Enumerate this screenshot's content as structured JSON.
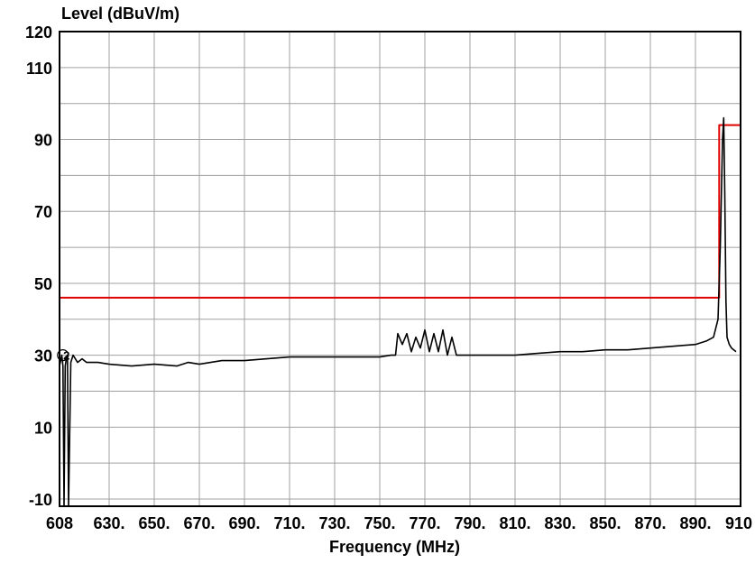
{
  "chart_data": {
    "type": "line",
    "title": "",
    "ylabel": "Level (dBuV/m)",
    "xlabel": "Frequency (MHz)",
    "xlim": [
      608,
      910
    ],
    "ylim": [
      -12,
      120
    ],
    "x_ticks": [
      608,
      630,
      650,
      670,
      690,
      710,
      730,
      750,
      770,
      790,
      810,
      830,
      850,
      870,
      890,
      910
    ],
    "x_tick_labels": [
      "608",
      "630.",
      "650.",
      "670.",
      "690.",
      "710.",
      "730.",
      "750.",
      "770.",
      "790.",
      "810.",
      "830.",
      "850.",
      "870.",
      "890.",
      "910"
    ],
    "y_ticks": [
      120,
      110,
      90,
      70,
      50,
      30,
      10,
      -10
    ],
    "y_tick_labels": [
      "120",
      "110",
      "90",
      "70",
      "50",
      "30",
      "10",
      "-10"
    ],
    "grid": true,
    "marker_label": "2",
    "colors": {
      "limit": "#e00000",
      "trace": "#000000",
      "grid": "#a0a0a0"
    },
    "series": [
      {
        "role": "limit",
        "x": [
          608,
          900.5,
          900.5,
          910
        ],
        "y": [
          46,
          46,
          94,
          94
        ]
      },
      {
        "role": "measurement",
        "x": [
          608,
          609,
          609.5,
          610,
          610.5,
          611,
          611.5,
          612,
          613,
          614,
          616,
          618,
          620,
          625,
          630,
          640,
          650,
          660,
          665,
          670,
          680,
          690,
          700,
          710,
          720,
          730,
          740,
          750,
          755,
          757,
          758,
          760,
          762,
          764,
          766,
          768,
          770,
          772,
          774,
          776,
          778,
          780,
          782,
          784,
          790,
          800,
          810,
          820,
          830,
          840,
          850,
          860,
          870,
          880,
          890,
          895,
          898,
          900,
          901,
          902,
          902.5,
          903,
          903.5,
          904,
          905,
          906,
          908
        ],
        "y": [
          27,
          30,
          27,
          -12,
          27,
          29,
          30,
          -12,
          28,
          30,
          28,
          29,
          28,
          28,
          27.5,
          27,
          27.5,
          27,
          28,
          27.5,
          28.5,
          28.5,
          29,
          29.5,
          29.5,
          29.5,
          29.5,
          29.5,
          30,
          30,
          36,
          33,
          36,
          31,
          35,
          32,
          37,
          31,
          36,
          31,
          37,
          30,
          35,
          30,
          30,
          30,
          30,
          30.5,
          31,
          31,
          31.5,
          31.5,
          32,
          32.5,
          33,
          34,
          35,
          40,
          60,
          90,
          96,
          75,
          45,
          35,
          33,
          32,
          31
        ]
      }
    ]
  }
}
